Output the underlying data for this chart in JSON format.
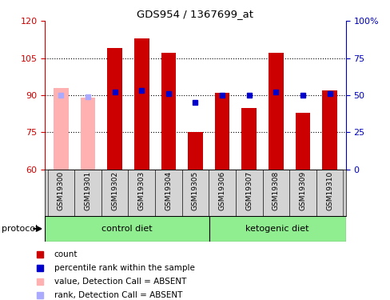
{
  "title": "GDS954 / 1367699_at",
  "samples": [
    "GSM19300",
    "GSM19301",
    "GSM19302",
    "GSM19303",
    "GSM19304",
    "GSM19305",
    "GSM19306",
    "GSM19307",
    "GSM19308",
    "GSM19309",
    "GSM19310"
  ],
  "bar_values": [
    93,
    89,
    109,
    113,
    107,
    75,
    91,
    85,
    107,
    83,
    92
  ],
  "bar_colors": [
    "#ffb0b0",
    "#ffb0b0",
    "#cc0000",
    "#cc0000",
    "#cc0000",
    "#cc0000",
    "#cc0000",
    "#cc0000",
    "#cc0000",
    "#cc0000",
    "#cc0000"
  ],
  "rank_pct": [
    50,
    49,
    52,
    53,
    51,
    45,
    50,
    50,
    52,
    50,
    51
  ],
  "rank_colors": [
    "#aaaaff",
    "#aaaaff",
    "#0000cc",
    "#0000cc",
    "#0000cc",
    "#0000cc",
    "#0000cc",
    "#0000cc",
    "#0000cc",
    "#0000cc",
    "#0000cc"
  ],
  "ylim_left": [
    60,
    120
  ],
  "ylim_right": [
    0,
    100
  ],
  "yticks_left": [
    60,
    75,
    90,
    105,
    120
  ],
  "yticks_right": [
    0,
    25,
    50,
    75,
    100
  ],
  "ytick_labels_right": [
    "0",
    "25",
    "50",
    "75",
    "100%"
  ],
  "hlines": [
    75,
    90,
    105
  ],
  "group1_label": "control diet",
  "group2_label": "ketogenic diet",
  "n_control": 6,
  "n_keto": 5,
  "protocol_label": "protocol",
  "legend_items": [
    {
      "label": "count",
      "color": "#cc0000"
    },
    {
      "label": "percentile rank within the sample",
      "color": "#0000cc"
    },
    {
      "label": "value, Detection Call = ABSENT",
      "color": "#ffb0b0"
    },
    {
      "label": "rank, Detection Call = ABSENT",
      "color": "#aaaaff"
    }
  ],
  "bar_width": 0.55,
  "rank_marker_size": 5,
  "left_axis_color": "#cc0000",
  "right_axis_color": "#0000bb",
  "ticklabel_bg": "#cccccc",
  "group_bg": "#90ee90"
}
